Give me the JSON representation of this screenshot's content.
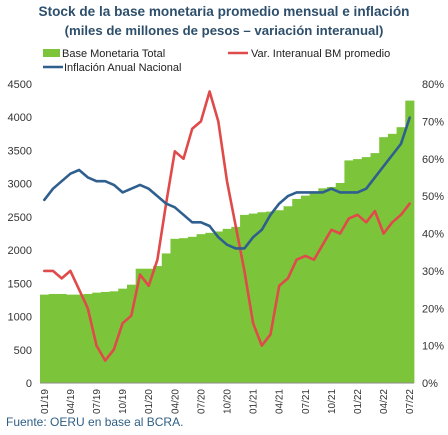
{
  "chart_data": {
    "type": "bar+line",
    "title": "Stock de la base monetaria promedio mensual e inflación",
    "subtitle": "(miles de millones de pesos – variación interanual)",
    "source": "Fuente: OERU en base al BCRA.",
    "legend": [
      {
        "label": "Base Monetaria Total",
        "color": "#7cc53a",
        "kind": "bar"
      },
      {
        "label": "Var. Interanual BM promedio",
        "color": "#e04a4a",
        "kind": "line"
      },
      {
        "label": "Inflación Anual Nacional",
        "color": "#2f5f8f",
        "kind": "line"
      }
    ],
    "legend_placement": "top-left",
    "grid": false,
    "left_axis": {
      "ylim": [
        0,
        4500
      ],
      "ticks": [
        "0",
        "500",
        "1000",
        "1500",
        "2000",
        "2500",
        "3000",
        "3500",
        "4000",
        "4500"
      ]
    },
    "right_axis": {
      "ylim": [
        0,
        80
      ],
      "ticks": [
        "0%",
        "10%",
        "20%",
        "30%",
        "40%",
        "50%",
        "60%",
        "70%",
        "80%"
      ]
    },
    "x_labels": [
      "01/19",
      "04/19",
      "07/19",
      "10/19",
      "01/20",
      "04/20",
      "07/20",
      "10/20",
      "01/21",
      "04/21",
      "07/21",
      "10/21",
      "01/22",
      "04/22",
      "07/22"
    ],
    "x": [
      "01/19",
      "02/19",
      "03/19",
      "04/19",
      "05/19",
      "06/19",
      "07/19",
      "08/19",
      "09/19",
      "10/19",
      "11/19",
      "12/19",
      "01/20",
      "02/20",
      "03/20",
      "04/20",
      "05/20",
      "06/20",
      "07/20",
      "08/20",
      "09/20",
      "10/20",
      "11/20",
      "12/20",
      "01/21",
      "02/21",
      "03/21",
      "04/21",
      "05/21",
      "06/21",
      "07/21",
      "08/21",
      "09/21",
      "10/21",
      "11/21",
      "12/21",
      "01/22",
      "02/22",
      "03/22",
      "04/22",
      "05/22",
      "06/22",
      "07/22"
    ],
    "series": [
      {
        "name": "Base Monetaria Total",
        "axis": "left",
        "values": [
          1330,
          1340,
          1340,
          1330,
          1330,
          1340,
          1360,
          1370,
          1380,
          1420,
          1480,
          1720,
          1720,
          1760,
          1950,
          2170,
          2180,
          2200,
          2240,
          2260,
          2280,
          2320,
          2350,
          2530,
          2550,
          2570,
          2580,
          2600,
          2660,
          2770,
          2820,
          2860,
          2930,
          2950,
          3010,
          3350,
          3370,
          3400,
          3460,
          3700,
          3750,
          3850,
          4250
        ]
      },
      {
        "name": "Var. Interanual BM promedio",
        "axis": "right",
        "values": [
          30,
          30,
          28,
          30,
          25,
          20,
          10,
          6,
          9,
          16,
          18,
          29,
          26,
          33,
          48,
          62,
          60,
          68,
          70,
          78,
          70,
          54,
          42,
          30,
          16,
          10,
          13,
          26,
          28,
          33,
          34,
          33,
          37,
          41,
          40,
          44,
          45,
          43,
          46,
          40,
          43,
          45,
          48
        ]
      },
      {
        "name": "Inflación Anual Nacional",
        "axis": "right",
        "values": [
          49,
          52,
          54,
          56,
          57,
          55,
          54,
          54,
          53,
          51,
          52,
          53,
          52,
          50,
          48,
          47,
          45,
          43,
          43,
          42,
          39,
          37,
          36,
          36,
          39,
          41,
          45,
          48,
          50,
          51,
          51,
          51,
          51,
          52,
          51,
          51,
          51,
          52,
          55,
          58,
          61,
          64,
          71
        ]
      }
    ]
  }
}
